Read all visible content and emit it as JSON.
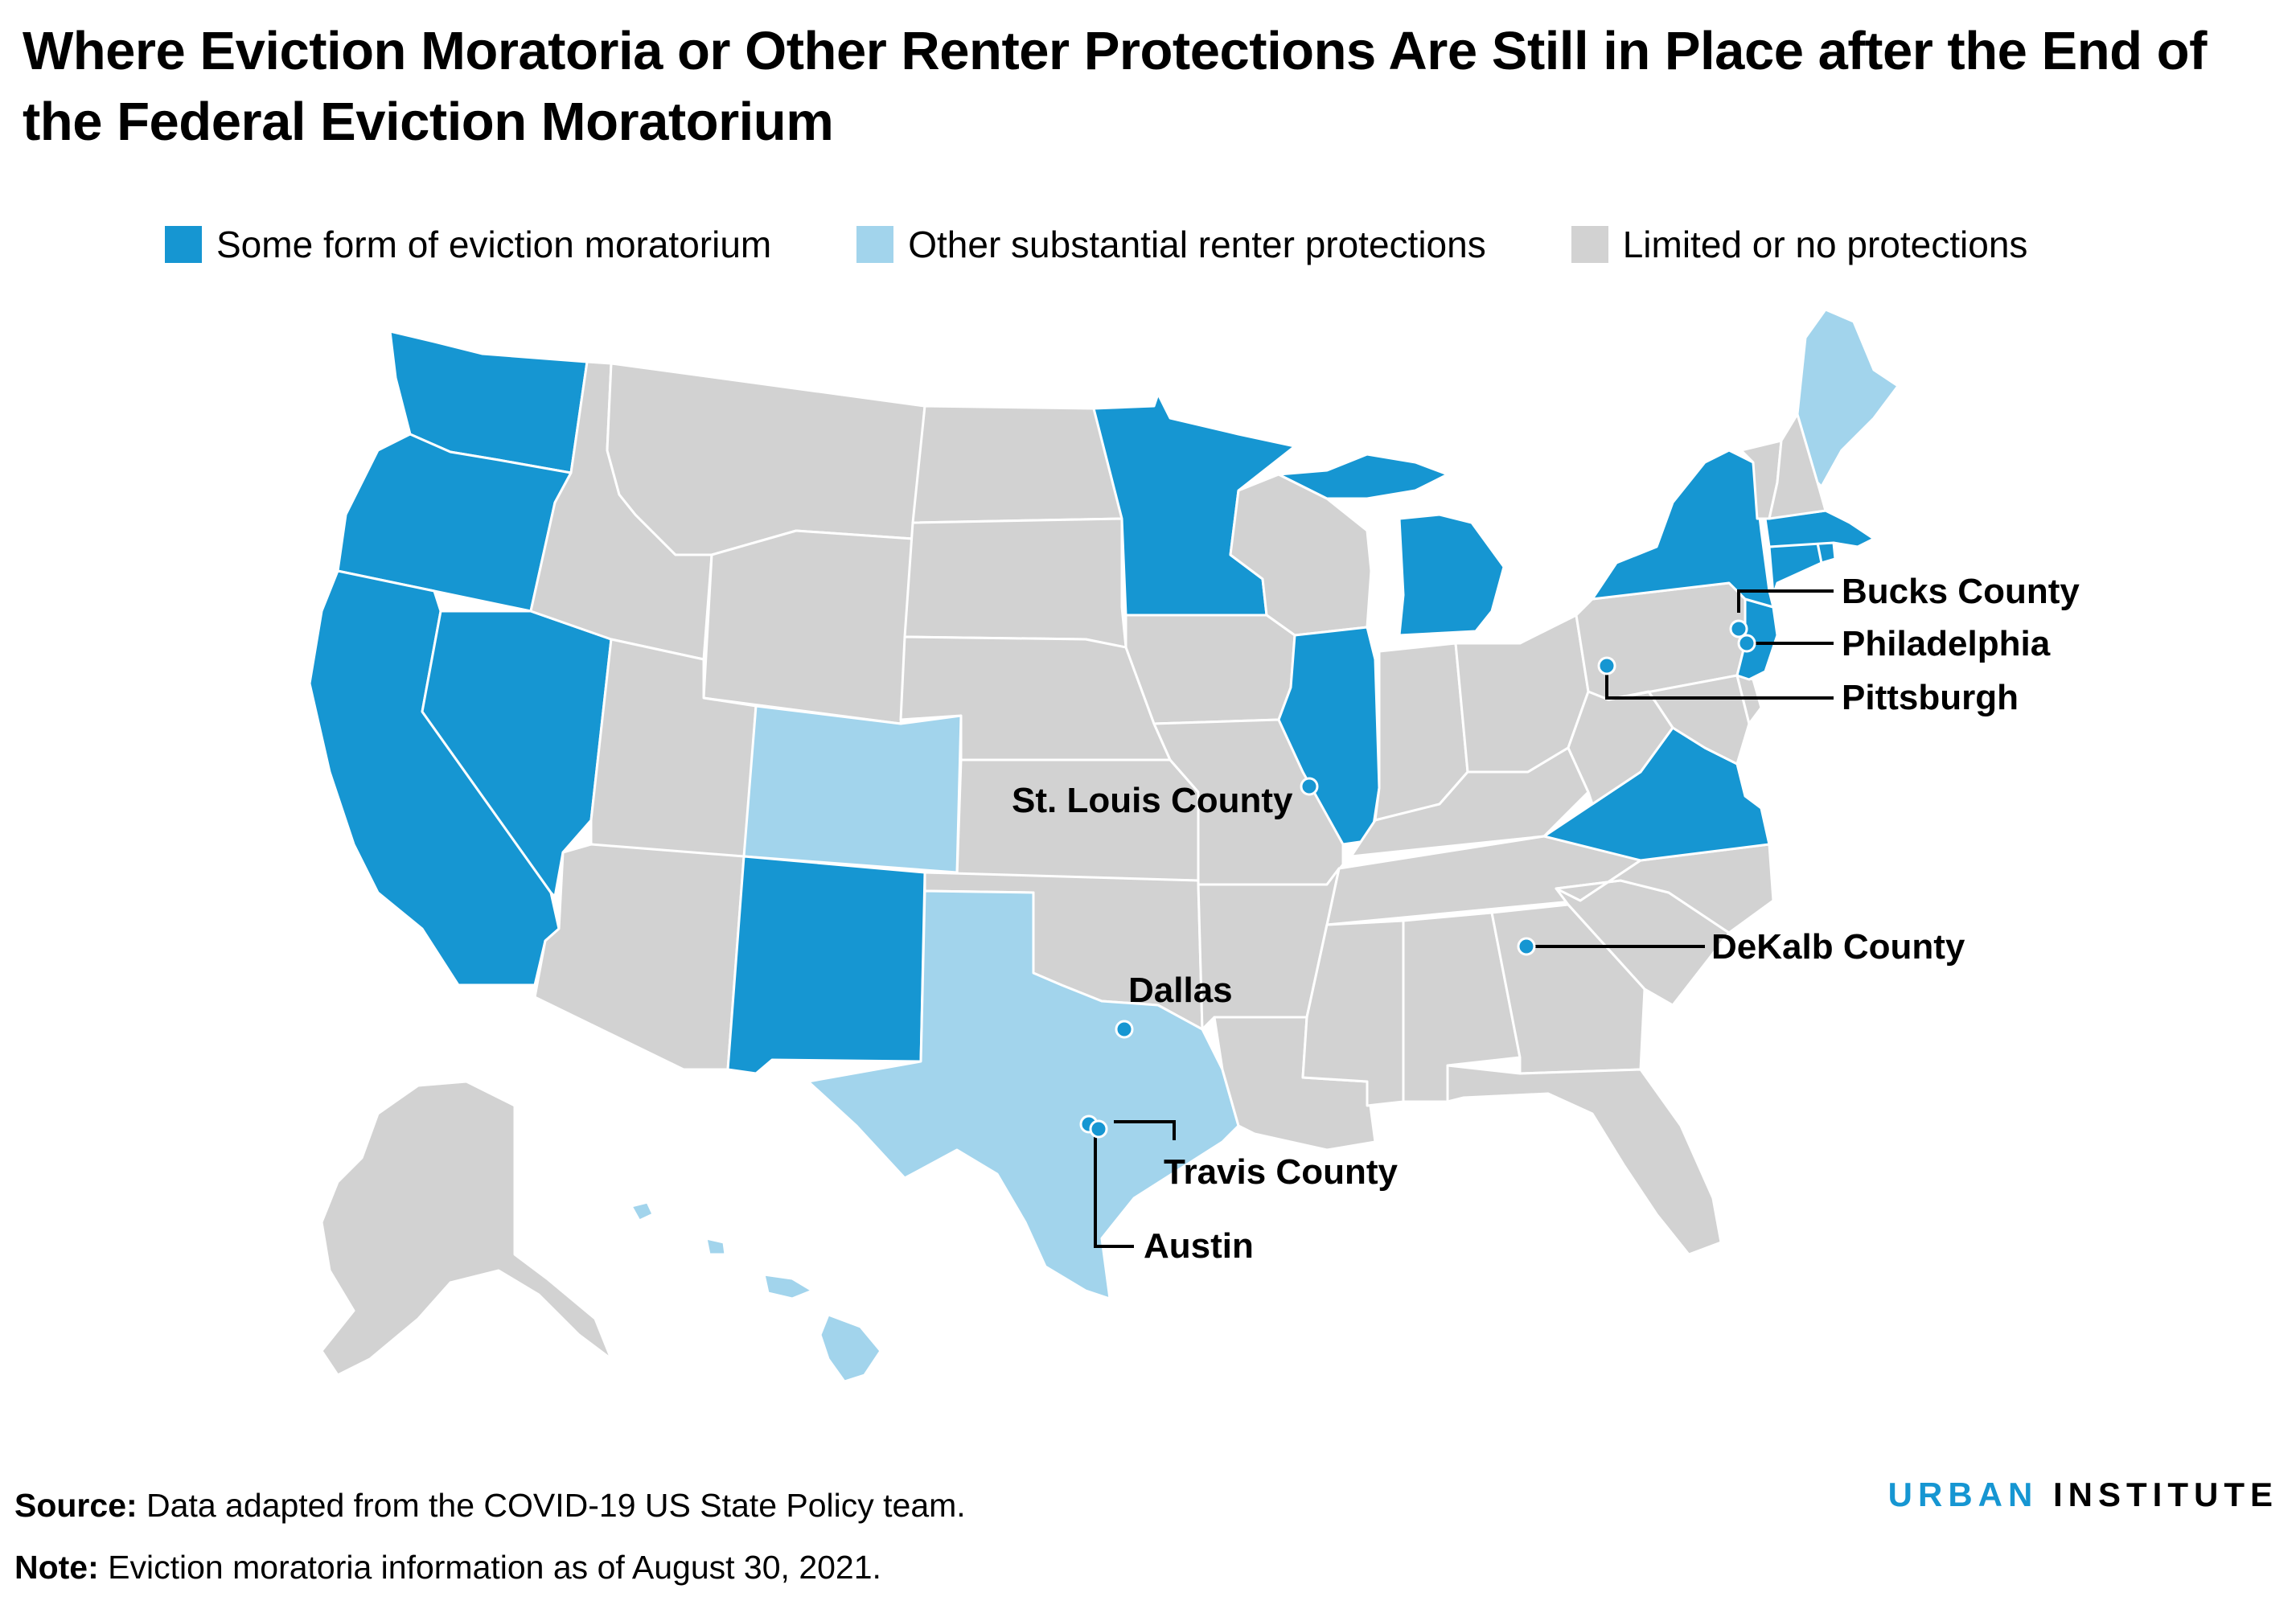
{
  "title": "Where Eviction Moratoria or Other Renter Protections Are Still in Place after the End of the Federal Eviction Moratorium",
  "legend": [
    {
      "label": "Some form of eviction moratorium",
      "color": "#1696d2"
    },
    {
      "label": "Other substantial renter protections",
      "color": "#a2d4ec"
    },
    {
      "label": "Limited or no protections",
      "color": "#d2d2d2"
    }
  ],
  "colors": {
    "moratorium": "#1696d2",
    "other": "#a2d4ec",
    "limited": "#d2d2d2"
  },
  "states": {
    "moratorium": [
      "Washington",
      "Oregon",
      "California",
      "Nevada",
      "New Mexico",
      "Minnesota",
      "Michigan",
      "Illinois",
      "New York",
      "Massachusetts",
      "Connecticut",
      "Rhode Island",
      "New Jersey",
      "Virginia"
    ],
    "other": [
      "Colorado",
      "Texas",
      "Maine",
      "Hawaii"
    ],
    "limited": [
      "Idaho",
      "Montana",
      "Wyoming",
      "Utah",
      "Arizona",
      "North Dakota",
      "South Dakota",
      "Nebraska",
      "Kansas",
      "Oklahoma",
      "Iowa",
      "Missouri",
      "Arkansas",
      "Louisiana",
      "Wisconsin",
      "Indiana",
      "Ohio",
      "Kentucky",
      "Tennessee",
      "Mississippi",
      "Alabama",
      "Georgia",
      "Florida",
      "South Carolina",
      "North Carolina",
      "West Virginia",
      "Pennsylvania",
      "Maryland",
      "Delaware",
      "Vermont",
      "New Hampshire",
      "Alaska"
    ]
  },
  "localities": {
    "bucks": "Bucks County",
    "philadelphia": "Philadelphia",
    "pittsburgh": "Pittsburgh",
    "stlouis": "St. Louis County",
    "dekalb": "DeKalb County",
    "dallas": "Dallas",
    "travis": "Travis County",
    "austin": "Austin"
  },
  "source_label": "Source:",
  "source_text": " Data adapted from the COVID-19 US State Policy team.",
  "note_label": "Note:",
  "note_text": " Eviction moratoria information as of August 30, 2021.",
  "brand": {
    "part1": "URBAN",
    "part2": "INSTITUTE"
  }
}
